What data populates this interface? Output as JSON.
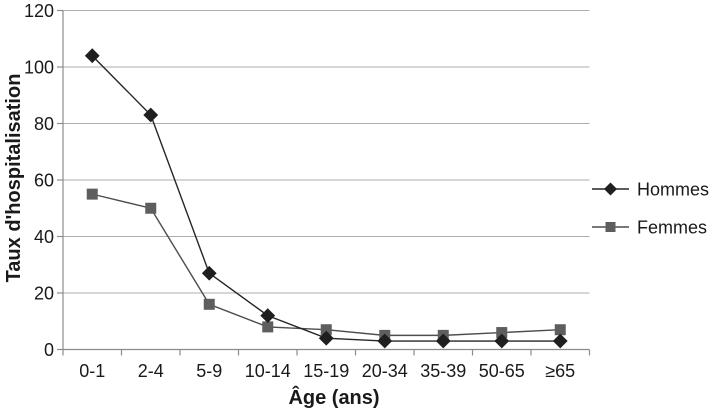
{
  "chart_data": {
    "type": "line",
    "title": "",
    "categories": [
      "0-1",
      "2-4",
      "5-9",
      "10-14",
      "15-19",
      "20-34",
      "35-39",
      "50-65",
      "≥65"
    ],
    "series": [
      {
        "name": "Hommes",
        "marker": "diamond",
        "color": "#262626",
        "marker_color": "#1f1f1f",
        "values": [
          104,
          83,
          27,
          12,
          4,
          3,
          3,
          3,
          3
        ]
      },
      {
        "name": "Femmes",
        "marker": "square",
        "color": "#4d4d4d",
        "marker_color": "#5e5e5e",
        "values": [
          55,
          50,
          16,
          8,
          7,
          5,
          5,
          6,
          7
        ]
      }
    ],
    "xlabel": "Âge (ans)",
    "ylabel": "Taux d'hospitalisation",
    "ylim": [
      0,
      120
    ],
    "yticks": [
      0,
      20,
      40,
      60,
      80,
      100,
      120
    ],
    "grid": true,
    "legend_position": "right"
  },
  "colors": {
    "background": "#ffffff",
    "gridline": "#adadad",
    "axis": "#8c8c8c",
    "text": "#1a1a1a"
  }
}
